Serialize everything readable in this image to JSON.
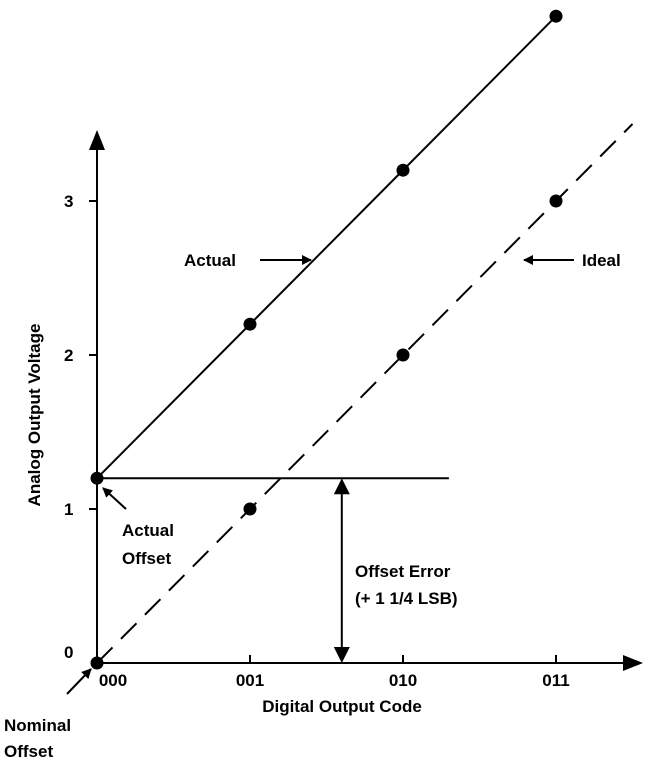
{
  "chart_data": {
    "type": "line",
    "title": "",
    "xlabel": "Digital Output Code",
    "ylabel": "Analog Output Voltage",
    "categories": [
      "000",
      "001",
      "010",
      "011"
    ],
    "yticks": [
      0,
      1,
      2,
      3
    ],
    "ylim": [
      0,
      3.5
    ],
    "series": [
      {
        "name": "Actual",
        "style": "solid",
        "values": [
          1.2,
          2.2,
          3.2,
          4.2
        ]
      },
      {
        "name": "Ideal",
        "style": "dashed",
        "values": [
          0,
          1,
          2,
          3
        ]
      }
    ],
    "annotations": {
      "actual_offset": {
        "lines": [
          "Actual",
          "Offset"
        ],
        "value": 1.2
      },
      "nominal_offset": {
        "lines": [
          "Nominal",
          "Offset"
        ],
        "value": 0
      },
      "offset_error": {
        "lines": [
          "Offset Error",
          "(+ 1 1/4 LSB)"
        ]
      }
    },
    "grid": false,
    "legend": "none"
  }
}
